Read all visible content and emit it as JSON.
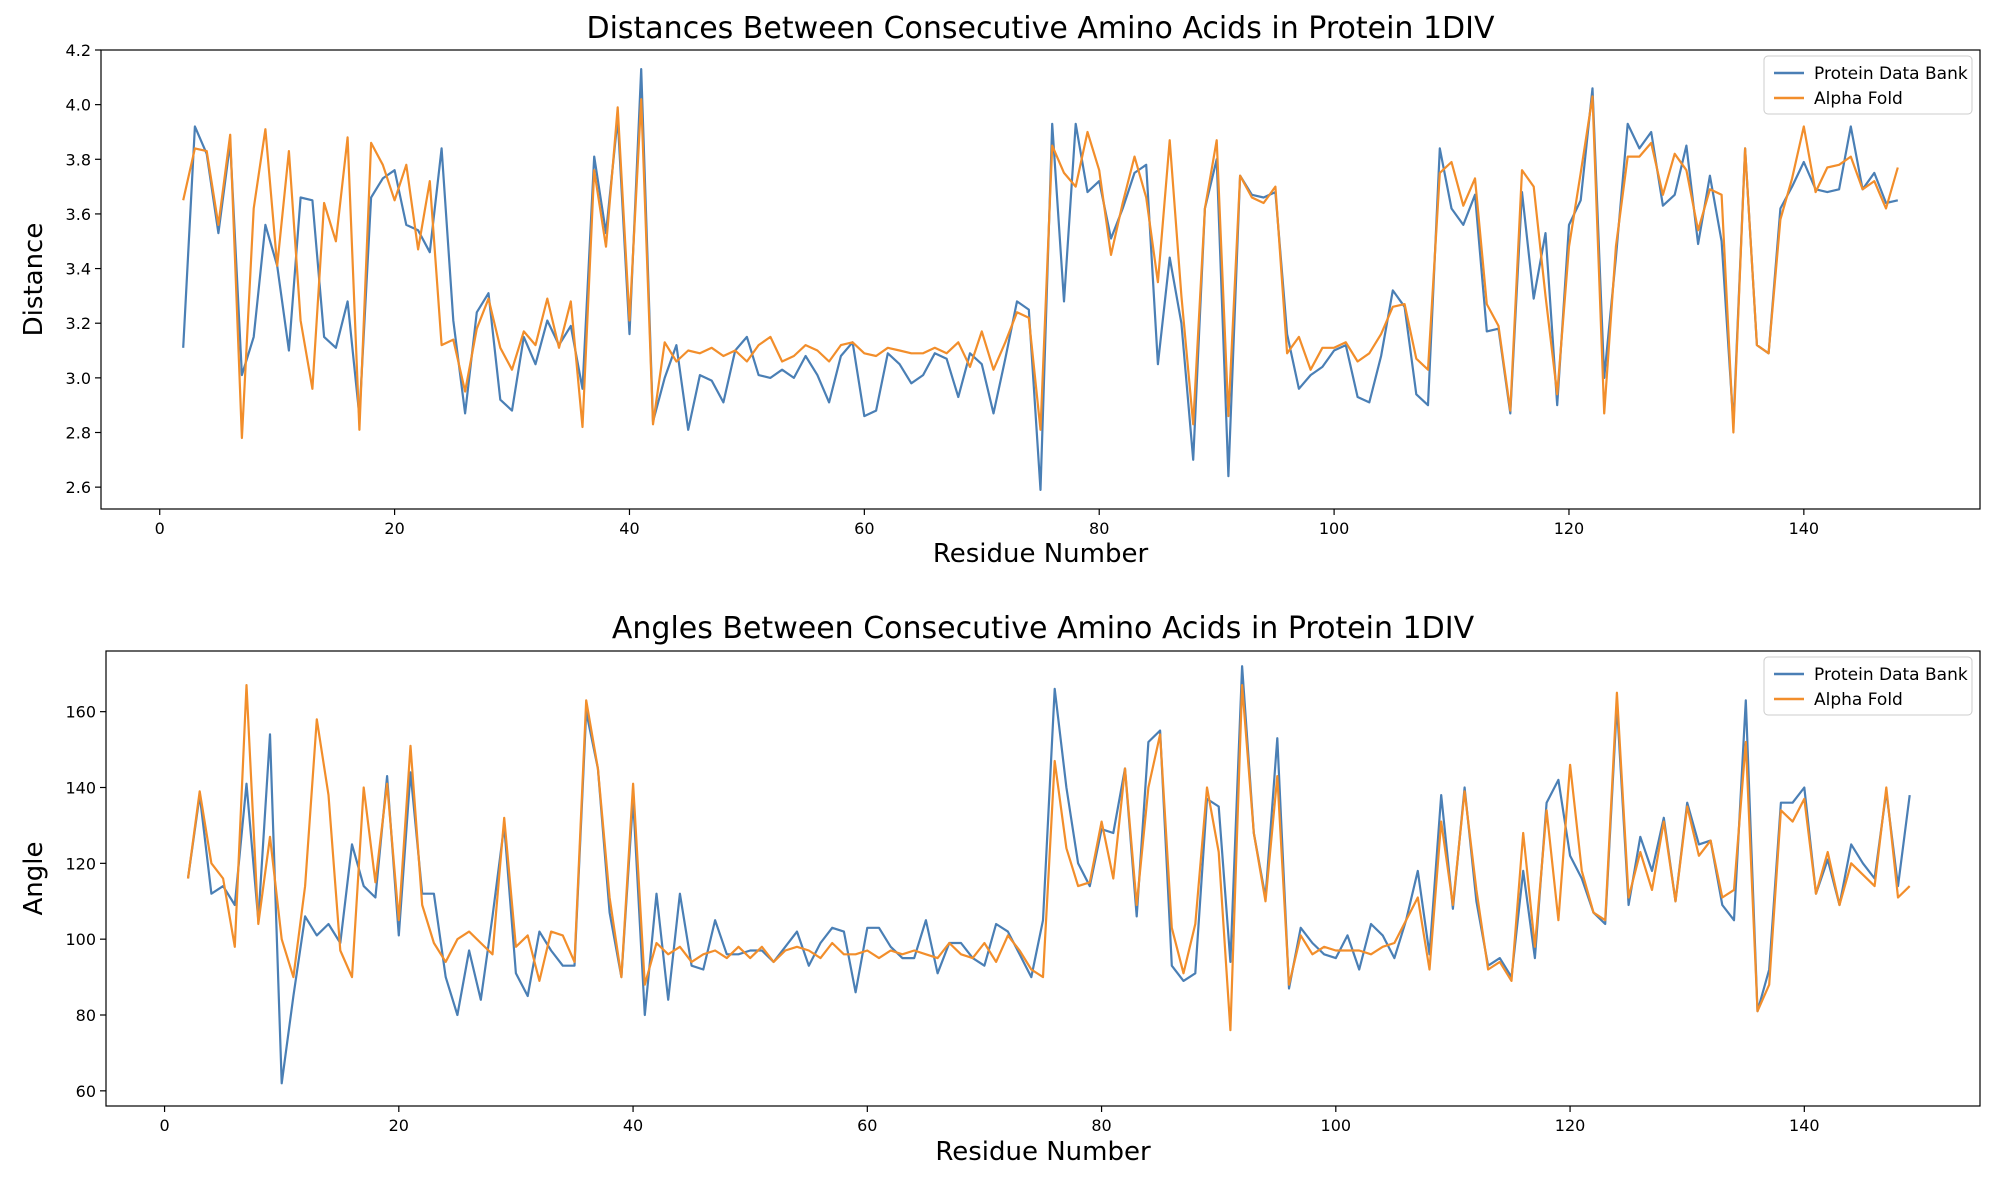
{
  "chart_data": [
    {
      "type": "line",
      "title": "Distances Between Consecutive Amino Acids in Protein 1DIV",
      "xlabel": "Residue Number",
      "ylabel": "Distance",
      "xlim": [
        -5,
        155
      ],
      "ylim": [
        2.52,
        4.2
      ],
      "xticks": [
        0,
        20,
        40,
        60,
        80,
        100,
        120,
        140
      ],
      "yticks": [
        2.6,
        2.8,
        3.0,
        3.2,
        3.4,
        3.6,
        3.8,
        4.0,
        4.2
      ],
      "ytick_labels": [
        "2.6",
        "2.8",
        "3.0",
        "3.2",
        "3.4",
        "3.6",
        "3.8",
        "4.0",
        "4.2"
      ],
      "grid": false,
      "legend": "top-right",
      "x_start": 2,
      "series": [
        {
          "name": "Protein Data Bank",
          "color": "#4a7fb5",
          "values": [
            3.11,
            3.92,
            3.82,
            3.53,
            3.86,
            3.01,
            3.15,
            3.56,
            3.41,
            3.1,
            3.66,
            3.65,
            3.15,
            3.11,
            3.28,
            2.86,
            3.66,
            3.73,
            3.76,
            3.56,
            3.54,
            3.46,
            3.84,
            3.21,
            2.87,
            3.24,
            3.31,
            2.92,
            2.88,
            3.15,
            3.05,
            3.21,
            3.12,
            3.19,
            2.96,
            3.81,
            3.53,
            3.95,
            3.16,
            4.13,
            2.84,
            3.0,
            3.12,
            2.81,
            3.01,
            2.99,
            2.91,
            3.1,
            3.15,
            3.01,
            3.0,
            3.03,
            3.0,
            3.08,
            3.01,
            2.91,
            3.08,
            3.13,
            2.86,
            2.88,
            3.09,
            3.05,
            2.98,
            3.01,
            3.09,
            3.07,
            2.93,
            3.09,
            3.05,
            2.87,
            3.07,
            3.28,
            3.25,
            2.59,
            3.93,
            3.28,
            3.93,
            3.68,
            3.72,
            3.51,
            3.62,
            3.75,
            3.78,
            3.05,
            3.44,
            3.2,
            2.7,
            3.62,
            3.8,
            2.64,
            3.74,
            3.67,
            3.66,
            3.68,
            3.16,
            2.96,
            3.01,
            3.04,
            3.1,
            3.12,
            2.93,
            2.91,
            3.08,
            3.32,
            3.26,
            2.94,
            2.9,
            3.84,
            3.62,
            3.56,
            3.67,
            3.17,
            3.18,
            2.87,
            3.68,
            3.29,
            3.53,
            2.9,
            3.56,
            3.65,
            4.06,
            3.0,
            3.44,
            3.93,
            3.84,
            3.9,
            3.63,
            3.67,
            3.85,
            3.49,
            3.74,
            3.5,
            2.83,
            3.84,
            3.12,
            3.09,
            3.62,
            3.7,
            3.79,
            3.69,
            3.68,
            3.69,
            3.92,
            3.69,
            3.75,
            3.64,
            3.65
          ]
        },
        {
          "name": "Alpha Fold",
          "color": "#f28e2b",
          "values": [
            3.65,
            3.84,
            3.83,
            3.56,
            3.89,
            2.78,
            3.62,
            3.91,
            3.41,
            3.83,
            3.21,
            2.96,
            3.64,
            3.5,
            3.88,
            2.81,
            3.86,
            3.78,
            3.65,
            3.78,
            3.47,
            3.72,
            3.12,
            3.14,
            2.95,
            3.18,
            3.29,
            3.11,
            3.03,
            3.17,
            3.12,
            3.29,
            3.11,
            3.28,
            2.82,
            3.76,
            3.48,
            3.99,
            3.21,
            4.02,
            2.83,
            3.13,
            3.06,
            3.1,
            3.09,
            3.11,
            3.08,
            3.1,
            3.06,
            3.12,
            3.15,
            3.06,
            3.08,
            3.12,
            3.1,
            3.06,
            3.12,
            3.13,
            3.09,
            3.08,
            3.11,
            3.1,
            3.09,
            3.09,
            3.11,
            3.09,
            3.13,
            3.04,
            3.17,
            3.03,
            3.13,
            3.24,
            3.22,
            2.81,
            3.85,
            3.75,
            3.7,
            3.9,
            3.76,
            3.45,
            3.64,
            3.81,
            3.66,
            3.35,
            3.87,
            3.3,
            2.83,
            3.62,
            3.87,
            2.86,
            3.74,
            3.66,
            3.64,
            3.7,
            3.09,
            3.15,
            3.03,
            3.11,
            3.11,
            3.13,
            3.06,
            3.09,
            3.16,
            3.26,
            3.27,
            3.07,
            3.03,
            3.75,
            3.79,
            3.63,
            3.73,
            3.27,
            3.19,
            2.88,
            3.76,
            3.7,
            3.3,
            2.94,
            3.48,
            3.75,
            4.03,
            2.87,
            3.48,
            3.81,
            3.81,
            3.86,
            3.67,
            3.82,
            3.76,
            3.54,
            3.69,
            3.67,
            2.8,
            3.84,
            3.12,
            3.09,
            3.58,
            3.73,
            3.92,
            3.68,
            3.77,
            3.78,
            3.81,
            3.69,
            3.72,
            3.62,
            3.77
          ]
        }
      ]
    },
    {
      "type": "line",
      "title": "Angles Between Consecutive Amino Acids in Protein 1DIV",
      "xlabel": "Residue Number",
      "ylabel": "Angle",
      "xlim": [
        -5,
        155
      ],
      "ylim": [
        56,
        176
      ],
      "xticks": [
        0,
        20,
        40,
        60,
        80,
        100,
        120,
        140
      ],
      "yticks": [
        60,
        80,
        100,
        120,
        140,
        160
      ],
      "ytick_labels": [
        "60",
        "80",
        "100",
        "120",
        "140",
        "160"
      ],
      "grid": false,
      "legend": "top-right",
      "x_start": 2,
      "series": [
        {
          "name": "Protein Data Bank",
          "color": "#4a7fb5",
          "values": [
            116,
            138,
            112,
            114,
            109,
            141,
            105,
            154,
            62,
            85,
            106,
            101,
            104,
            99,
            125,
            114,
            111,
            143,
            101,
            144,
            112,
            112,
            90,
            80,
            97,
            84,
            106,
            130,
            91,
            85,
            102,
            97,
            93,
            93,
            160,
            145,
            107,
            90,
            137,
            80,
            112,
            84,
            112,
            93,
            92,
            105,
            96,
            96,
            97,
            97,
            94,
            98,
            102,
            93,
            99,
            103,
            102,
            86,
            103,
            103,
            98,
            95,
            95,
            105,
            91,
            99,
            99,
            95,
            93,
            104,
            102,
            96,
            90,
            105,
            166,
            140,
            120,
            114,
            129,
            128,
            145,
            106,
            152,
            155,
            93,
            89,
            91,
            137,
            135,
            94,
            172,
            128,
            111,
            153,
            87,
            103,
            99,
            96,
            95,
            101,
            92,
            104,
            101,
            95,
            105,
            118,
            96,
            138,
            108,
            140,
            110,
            93,
            95,
            90,
            118,
            95,
            136,
            142,
            122,
            116,
            107,
            104,
            162,
            109,
            127,
            118,
            132,
            110,
            136,
            125,
            126,
            109,
            105,
            163,
            81,
            92,
            136,
            136,
            140,
            112,
            121,
            109,
            125,
            120,
            116,
            139,
            114,
            138
          ]
        },
        {
          "name": "Alpha Fold",
          "color": "#f28e2b",
          "values": [
            116,
            139,
            120,
            116,
            98,
            167,
            104,
            127,
            100,
            90,
            114,
            158,
            138,
            97,
            90,
            140,
            115,
            141,
            105,
            151,
            109,
            99,
            94,
            100,
            102,
            99,
            96,
            132,
            98,
            101,
            89,
            102,
            101,
            94,
            163,
            145,
            111,
            90,
            141,
            88,
            99,
            96,
            98,
            94,
            96,
            97,
            95,
            98,
            95,
            98,
            94,
            97,
            98,
            97,
            95,
            99,
            96,
            96,
            97,
            95,
            97,
            96,
            97,
            96,
            95,
            99,
            96,
            95,
            99,
            94,
            101,
            97,
            92,
            90,
            147,
            124,
            114,
            115,
            131,
            116,
            145,
            109,
            140,
            154,
            103,
            91,
            104,
            140,
            123,
            76,
            167,
            128,
            110,
            143,
            88,
            101,
            96,
            98,
            97,
            97,
            97,
            96,
            98,
            99,
            105,
            111,
            92,
            131,
            109,
            139,
            113,
            92,
            94,
            89,
            128,
            98,
            134,
            105,
            146,
            118,
            107,
            105,
            165,
            111,
            123,
            113,
            131,
            110,
            135,
            122,
            126,
            111,
            113,
            152,
            81,
            88,
            134,
            131,
            137,
            112,
            123,
            109,
            120,
            117,
            114,
            140,
            111,
            114
          ]
        }
      ]
    }
  ]
}
